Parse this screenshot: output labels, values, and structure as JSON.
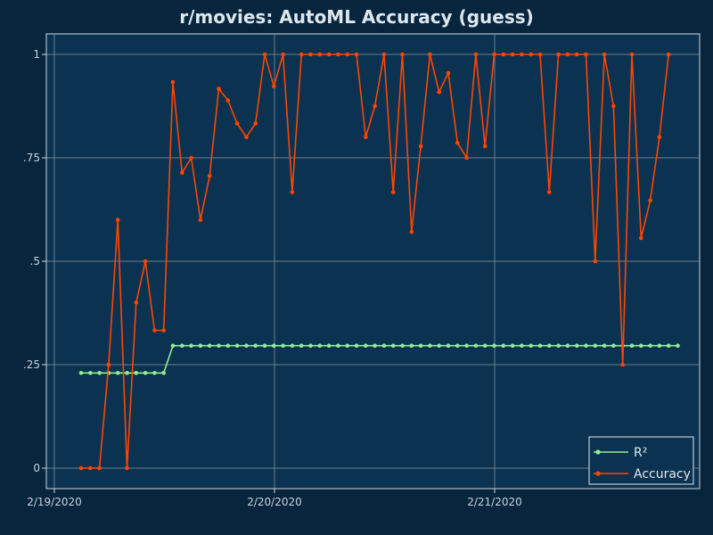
{
  "chart_data": {
    "type": "line",
    "title": "r/movies: AutoML Accuracy (guess)",
    "xlabel": "",
    "ylabel": "",
    "x_ticks": [
      "2/19/2020",
      "2/20/2020",
      "2/21/2020"
    ],
    "y_ticks": [
      "0",
      ".25",
      ".5",
      ".75",
      "1"
    ],
    "ylim": [
      -0.05,
      1.05
    ],
    "grid": true,
    "legend_position": "bottom-right",
    "series": [
      {
        "name": "R²",
        "color": "#90ee90",
        "values": [
          0.23,
          0.23,
          0.23,
          0.23,
          0.23,
          0.23,
          0.23,
          0.23,
          0.23,
          0.23,
          0.296,
          0.296,
          0.296,
          0.296,
          0.296,
          0.296,
          0.296,
          0.296,
          0.296,
          0.296,
          0.296,
          0.296,
          0.296,
          0.296,
          0.296,
          0.296,
          0.296,
          0.296,
          0.296,
          0.296,
          0.296,
          0.296,
          0.296,
          0.296,
          0.296,
          0.296,
          0.296,
          0.296,
          0.296,
          0.296,
          0.296,
          0.296,
          0.296,
          0.296,
          0.296,
          0.296,
          0.296,
          0.296,
          0.296,
          0.296,
          0.296,
          0.296,
          0.296,
          0.296,
          0.296,
          0.296,
          0.296,
          0.296,
          0.296,
          0.296,
          0.296,
          0.296,
          0.296,
          0.296,
          0.296,
          0.296
        ]
      },
      {
        "name": "Accuracy",
        "color": "#ff4500",
        "values": [
          0,
          0,
          0,
          0.25,
          0.6,
          0,
          0.4,
          0.5,
          0.333,
          0.333,
          0.933,
          0.714,
          0.75,
          0.6,
          0.706,
          0.917,
          0.889,
          0.833,
          0.8,
          0.833,
          1,
          0.923,
          1,
          0.667,
          1,
          1,
          1,
          1,
          1,
          1,
          1,
          0.8,
          0.875,
          1,
          0.667,
          1,
          0.571,
          0.778,
          1,
          0.909,
          0.955,
          0.786,
          0.75,
          1,
          0.778,
          1,
          1,
          1,
          1,
          1,
          1,
          0.667,
          1,
          1,
          1,
          1,
          0.5,
          1,
          0.875,
          0.25,
          1,
          0.556,
          0.647,
          0.8,
          1
        ]
      }
    ]
  }
}
